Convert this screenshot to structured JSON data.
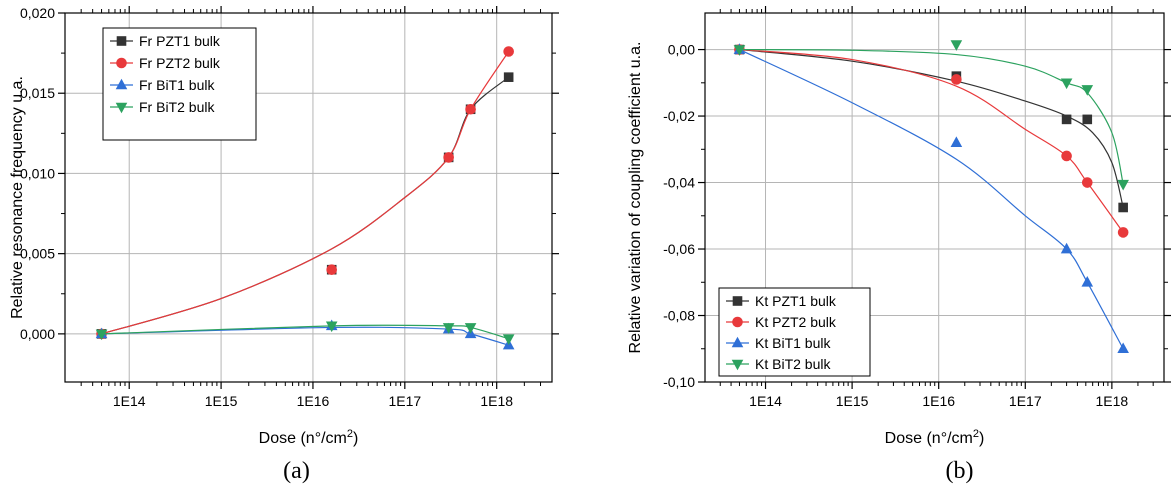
{
  "colors": {
    "black": "#333333",
    "red": "#e8393b",
    "blue": "#2f6fd6",
    "green": "#2ca25f",
    "grid": "#b5b5b5",
    "axis": "#000000"
  },
  "chart_data": [
    {
      "id": "a",
      "type": "line",
      "panel_label": "(a)",
      "xlabel_prefix": "Dose (n°/cm",
      "xlabel_sup": "2",
      "xlabel_suffix": ")",
      "ylabel": "Relative resonance frequency u.a.",
      "xscale": "log",
      "xlim": [
        20000000000000.0,
        4e+18
      ],
      "ylim": [
        -0.003,
        0.02
      ],
      "xticks": [
        {
          "v": 100000000000000.0,
          "label": "1E14"
        },
        {
          "v": 1000000000000000.0,
          "label": "1E15"
        },
        {
          "v": 1e+16,
          "label": "1E16"
        },
        {
          "v": 1e+17,
          "label": "1E17"
        },
        {
          "v": 1e+18,
          "label": "1E18"
        }
      ],
      "yticks": [
        {
          "v": 0.0,
          "label": "0,000"
        },
        {
          "v": 0.005,
          "label": "0,005"
        },
        {
          "v": 0.01,
          "label": "0,010"
        },
        {
          "v": 0.015,
          "label": "0,015"
        },
        {
          "v": 0.02,
          "label": "0,020"
        }
      ],
      "grid": true,
      "legend_position": "top-left",
      "series": [
        {
          "name": "Fr PZT1 bulk",
          "color": "black",
          "marker": "square",
          "x": [
            50000000000000.0,
            1.6e+16,
            3e+17,
            5.2e+17,
            1.35e+18
          ],
          "y": [
            0.0,
            0.004,
            0.011,
            0.014,
            0.016
          ],
          "fit": [
            [
              50000000000000.0,
              0.0
            ],
            [
              1000000000000000.0,
              0.0022
            ],
            [
              1.6e+16,
              0.0053
            ],
            [
              1e+17,
              0.0085
            ],
            [
              3e+17,
              0.011
            ],
            [
              5.2e+17,
              0.014
            ],
            [
              1.35e+18,
              0.016
            ]
          ]
        },
        {
          "name": "Fr PZT2 bulk",
          "color": "red",
          "marker": "circle",
          "x": [
            50000000000000.0,
            1.6e+16,
            3e+17,
            5.2e+17,
            1.35e+18
          ],
          "y": [
            0.0,
            0.004,
            0.011,
            0.014,
            0.0176
          ],
          "fit": [
            [
              50000000000000.0,
              0.0
            ],
            [
              1000000000000000.0,
              0.0022
            ],
            [
              1.6e+16,
              0.0053
            ],
            [
              1e+17,
              0.0085
            ],
            [
              3e+17,
              0.011
            ],
            [
              5.2e+17,
              0.014
            ],
            [
              1.35e+18,
              0.0176
            ]
          ]
        },
        {
          "name": "Fr BiT1 bulk",
          "color": "blue",
          "marker": "triangle-up",
          "x": [
            50000000000000.0,
            1.6e+16,
            3e+17,
            5.2e+17,
            1.35e+18
          ],
          "y": [
            0.0,
            0.0005,
            0.0003,
            0.0,
            -0.0007
          ],
          "fit": [
            [
              50000000000000.0,
              0.0
            ],
            [
              1.6e+16,
              0.0004
            ],
            [
              3e+17,
              0.0003
            ],
            [
              5.2e+17,
              0.0
            ],
            [
              1.35e+18,
              -0.0007
            ]
          ]
        },
        {
          "name": "Fr BiT2 bulk",
          "color": "green",
          "marker": "triangle-down",
          "x": [
            50000000000000.0,
            1.6e+16,
            3e+17,
            5.2e+17,
            1.35e+18
          ],
          "y": [
            0.0,
            0.0005,
            0.0004,
            0.0004,
            -0.0003
          ],
          "fit": [
            [
              50000000000000.0,
              0.0
            ],
            [
              1.6e+16,
              0.0005
            ],
            [
              3e+17,
              0.0005
            ],
            [
              5.2e+17,
              0.0004
            ],
            [
              1.35e+18,
              -0.0003
            ]
          ]
        }
      ]
    },
    {
      "id": "b",
      "type": "line",
      "panel_label": "(b)",
      "xlabel_prefix": "Dose (n°/cm",
      "xlabel_sup": "2",
      "xlabel_suffix": ")",
      "ylabel": "Relative variation of coupling coefficient u.a.",
      "xscale": "log",
      "xlim": [
        20000000000000.0,
        4e+18
      ],
      "ylim": [
        -0.1,
        0.011
      ],
      "xticks": [
        {
          "v": 100000000000000.0,
          "label": "1E14"
        },
        {
          "v": 1000000000000000.0,
          "label": "1E15"
        },
        {
          "v": 1e+16,
          "label": "1E16"
        },
        {
          "v": 1e+17,
          "label": "1E17"
        },
        {
          "v": 1e+18,
          "label": "1E18"
        }
      ],
      "yticks": [
        {
          "v": 0.0,
          "label": "0,00"
        },
        {
          "v": -0.02,
          "label": "-0,02"
        },
        {
          "v": -0.04,
          "label": "-0,04"
        },
        {
          "v": -0.06,
          "label": "-0,06"
        },
        {
          "v": -0.08,
          "label": "-0,08"
        },
        {
          "v": -0.1,
          "label": "-0,10"
        }
      ],
      "grid": true,
      "legend_position": "bottom-left",
      "series": [
        {
          "name": "Kt PZT1 bulk",
          "color": "black",
          "marker": "square",
          "x": [
            50000000000000.0,
            1.6e+16,
            3e+17,
            5.2e+17,
            1.35e+18
          ],
          "y": [
            0.0,
            -0.008,
            -0.021,
            -0.021,
            -0.0475
          ],
          "fit": [
            [
              50000000000000.0,
              0.0
            ],
            [
              1000000000000000.0,
              -0.0035
            ],
            [
              1.6e+16,
              -0.0095
            ],
            [
              1e+17,
              -0.0155
            ],
            [
              3e+17,
              -0.02
            ],
            [
              6e+17,
              -0.025
            ],
            [
              1e+18,
              -0.034
            ],
            [
              1.35e+18,
              -0.0475
            ]
          ]
        },
        {
          "name": "Kt PZT2 bulk",
          "color": "red",
          "marker": "circle",
          "x": [
            50000000000000.0,
            1.6e+16,
            3e+17,
            5.2e+17,
            1.35e+18
          ],
          "y": [
            0.0,
            -0.009,
            -0.032,
            -0.04,
            -0.055
          ],
          "fit": [
            [
              50000000000000.0,
              0.0
            ],
            [
              1000000000000000.0,
              -0.003
            ],
            [
              1.6e+16,
              -0.011
            ],
            [
              1e+17,
              -0.024
            ],
            [
              3e+17,
              -0.032
            ],
            [
              5.2e+17,
              -0.04
            ],
            [
              1.35e+18,
              -0.055
            ]
          ]
        },
        {
          "name": "Kt BiT1 bulk",
          "color": "blue",
          "marker": "triangle-up",
          "x": [
            50000000000000.0,
            1.6e+16,
            3e+17,
            5.2e+17,
            1.35e+18
          ],
          "y": [
            0.0,
            -0.028,
            -0.06,
            -0.07,
            -0.09
          ],
          "fit": [
            [
              50000000000000.0,
              0.0
            ],
            [
              1000000000000000.0,
              -0.016
            ],
            [
              1.6e+16,
              -0.033
            ],
            [
              1e+17,
              -0.05
            ],
            [
              3e+17,
              -0.06
            ],
            [
              5.2e+17,
              -0.07
            ],
            [
              1.35e+18,
              -0.09
            ]
          ]
        },
        {
          "name": "Kt BiT2 bulk",
          "color": "green",
          "marker": "triangle-down",
          "x": [
            50000000000000.0,
            1.6e+16,
            3e+17,
            5.2e+17,
            1.35e+18
          ],
          "y": [
            0.0,
            0.0015,
            -0.01,
            -0.012,
            -0.0405
          ],
          "fit": [
            [
              50000000000000.0,
              0.0
            ],
            [
              1000000000000000.0,
              -0.0002
            ],
            [
              1.6e+16,
              -0.0015
            ],
            [
              1e+17,
              -0.005
            ],
            [
              3e+17,
              -0.01
            ],
            [
              5.2e+17,
              -0.013
            ],
            [
              1e+18,
              -0.025
            ],
            [
              1.35e+18,
              -0.0405
            ]
          ]
        }
      ]
    }
  ]
}
